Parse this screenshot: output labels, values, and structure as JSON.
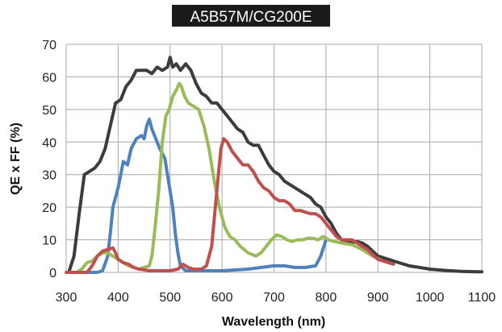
{
  "chart_data": {
    "type": "line",
    "title": "A5B57M/CG200E",
    "xlabel": "Wavelength (nm)",
    "ylabel": "QE x FF (%)",
    "xlim": [
      300,
      1100
    ],
    "ylim": [
      0,
      70
    ],
    "x_ticks": [
      300,
      400,
      500,
      600,
      700,
      800,
      900,
      1000,
      1100
    ],
    "y_ticks": [
      0,
      10,
      20,
      30,
      40,
      50,
      60,
      70
    ],
    "grid": true,
    "legend": "none",
    "series": [
      {
        "color": "#3c3c3c",
        "points": [
          [
            305,
            0
          ],
          [
            315,
            5
          ],
          [
            325,
            18
          ],
          [
            335,
            30
          ],
          [
            345,
            31
          ],
          [
            355,
            32
          ],
          [
            365,
            34
          ],
          [
            375,
            38
          ],
          [
            385,
            45
          ],
          [
            395,
            52
          ],
          [
            405,
            53
          ],
          [
            415,
            57
          ],
          [
            425,
            59
          ],
          [
            435,
            62
          ],
          [
            445,
            62
          ],
          [
            455,
            62
          ],
          [
            465,
            61
          ],
          [
            475,
            63
          ],
          [
            485,
            62
          ],
          [
            495,
            63
          ],
          [
            500,
            66
          ],
          [
            505,
            63
          ],
          [
            512,
            64
          ],
          [
            520,
            62
          ],
          [
            530,
            64
          ],
          [
            540,
            62
          ],
          [
            550,
            58
          ],
          [
            560,
            55
          ],
          [
            570,
            54
          ],
          [
            580,
            52
          ],
          [
            590,
            52
          ],
          [
            600,
            50
          ],
          [
            610,
            48
          ],
          [
            620,
            46
          ],
          [
            630,
            44
          ],
          [
            640,
            43
          ],
          [
            650,
            40
          ],
          [
            660,
            39
          ],
          [
            670,
            39
          ],
          [
            680,
            36
          ],
          [
            690,
            33
          ],
          [
            700,
            31
          ],
          [
            710,
            30
          ],
          [
            720,
            28
          ],
          [
            730,
            27
          ],
          [
            740,
            26
          ],
          [
            750,
            25
          ],
          [
            760,
            24
          ],
          [
            770,
            23
          ],
          [
            780,
            21
          ],
          [
            790,
            20
          ],
          [
            800,
            17
          ],
          [
            810,
            15
          ],
          [
            820,
            12
          ],
          [
            830,
            10
          ],
          [
            840,
            9.5
          ],
          [
            850,
            9
          ],
          [
            860,
            9.5
          ],
          [
            870,
            9
          ],
          [
            880,
            8
          ],
          [
            890,
            6.5
          ],
          [
            900,
            5
          ],
          [
            920,
            4
          ],
          [
            940,
            3
          ],
          [
            960,
            2
          ],
          [
            980,
            1.5
          ],
          [
            1000,
            1
          ],
          [
            1030,
            0.6
          ],
          [
            1060,
            0.3
          ],
          [
            1090,
            0.2
          ],
          [
            1100,
            0.2
          ]
        ]
      },
      {
        "color": "#4f81bd",
        "points": [
          [
            340,
            0
          ],
          [
            350,
            0
          ],
          [
            360,
            0
          ],
          [
            370,
            0.5
          ],
          [
            380,
            5
          ],
          [
            385,
            12
          ],
          [
            390,
            20
          ],
          [
            400,
            26
          ],
          [
            405,
            30
          ],
          [
            410,
            34
          ],
          [
            418,
            33
          ],
          [
            425,
            38
          ],
          [
            435,
            41
          ],
          [
            445,
            42
          ],
          [
            450,
            41
          ],
          [
            455,
            45
          ],
          [
            460,
            47
          ],
          [
            465,
            44
          ],
          [
            470,
            42
          ],
          [
            475,
            40
          ],
          [
            480,
            38
          ],
          [
            490,
            35
          ],
          [
            495,
            30
          ],
          [
            505,
            20
          ],
          [
            510,
            12
          ],
          [
            515,
            6
          ],
          [
            520,
            2
          ],
          [
            530,
            0.5
          ],
          [
            560,
            0.5
          ],
          [
            600,
            0.5
          ],
          [
            650,
            1
          ],
          [
            700,
            2
          ],
          [
            720,
            2
          ],
          [
            740,
            1.5
          ],
          [
            760,
            1.5
          ],
          [
            780,
            2
          ],
          [
            790,
            5
          ],
          [
            800,
            10
          ]
        ]
      },
      {
        "color": "#9bbb59",
        "points": [
          [
            320,
            0
          ],
          [
            330,
            1
          ],
          [
            340,
            3
          ],
          [
            350,
            3.5
          ],
          [
            360,
            5
          ],
          [
            370,
            6
          ],
          [
            380,
            6
          ],
          [
            390,
            5
          ],
          [
            400,
            4
          ],
          [
            410,
            3
          ],
          [
            420,
            2
          ],
          [
            430,
            1.5
          ],
          [
            440,
            1
          ],
          [
            450,
            1.5
          ],
          [
            460,
            2
          ],
          [
            465,
            5
          ],
          [
            470,
            12
          ],
          [
            478,
            25
          ],
          [
            485,
            40
          ],
          [
            492,
            48
          ],
          [
            498,
            50
          ],
          [
            505,
            54
          ],
          [
            512,
            56
          ],
          [
            518,
            58
          ],
          [
            522,
            57
          ],
          [
            528,
            54
          ],
          [
            535,
            52
          ],
          [
            545,
            51
          ],
          [
            555,
            50
          ],
          [
            565,
            45
          ],
          [
            575,
            38
          ],
          [
            585,
            28
          ],
          [
            595,
            20
          ],
          [
            605,
            14
          ],
          [
            615,
            11
          ],
          [
            625,
            10
          ],
          [
            635,
            8
          ],
          [
            650,
            6
          ],
          [
            665,
            5
          ],
          [
            675,
            6
          ],
          [
            685,
            8
          ],
          [
            695,
            10
          ],
          [
            705,
            11.5
          ],
          [
            715,
            11
          ],
          [
            725,
            10
          ],
          [
            735,
            9.5
          ],
          [
            745,
            10
          ],
          [
            755,
            10
          ],
          [
            765,
            10.5
          ],
          [
            775,
            10.5
          ],
          [
            785,
            10
          ],
          [
            795,
            11
          ],
          [
            805,
            10
          ],
          [
            815,
            9.5
          ],
          [
            830,
            9
          ],
          [
            850,
            8.5
          ],
          [
            870,
            7
          ],
          [
            890,
            5
          ],
          [
            910,
            3.5
          ],
          [
            930,
            2.5
          ]
        ]
      },
      {
        "color": "#c0504d",
        "points": [
          [
            300,
            0
          ],
          [
            340,
            0
          ],
          [
            350,
            2
          ],
          [
            360,
            5
          ],
          [
            370,
            6.5
          ],
          [
            380,
            7
          ],
          [
            390,
            7.5
          ],
          [
            395,
            6
          ],
          [
            400,
            4
          ],
          [
            410,
            3
          ],
          [
            420,
            2.5
          ],
          [
            430,
            1.5
          ],
          [
            440,
            1
          ],
          [
            450,
            0.8
          ],
          [
            460,
            0.5
          ],
          [
            480,
            0.5
          ],
          [
            500,
            0.5
          ],
          [
            515,
            1
          ],
          [
            525,
            2.5
          ],
          [
            535,
            1.5
          ],
          [
            545,
            1
          ],
          [
            560,
            1
          ],
          [
            570,
            2
          ],
          [
            580,
            8
          ],
          [
            587,
            20
          ],
          [
            593,
            30
          ],
          [
            598,
            38
          ],
          [
            603,
            41
          ],
          [
            610,
            40
          ],
          [
            620,
            37
          ],
          [
            630,
            35
          ],
          [
            640,
            33
          ],
          [
            650,
            33
          ],
          [
            660,
            31
          ],
          [
            670,
            28
          ],
          [
            680,
            26
          ],
          [
            690,
            25
          ],
          [
            700,
            23
          ],
          [
            710,
            22
          ],
          [
            720,
            22
          ],
          [
            730,
            21
          ],
          [
            740,
            19
          ],
          [
            750,
            19
          ],
          [
            760,
            18.5
          ],
          [
            770,
            18
          ],
          [
            780,
            18
          ],
          [
            790,
            17
          ],
          [
            800,
            15
          ],
          [
            810,
            13
          ],
          [
            820,
            11
          ],
          [
            830,
            10
          ],
          [
            840,
            10
          ],
          [
            850,
            10
          ],
          [
            860,
            9
          ],
          [
            870,
            8
          ],
          [
            880,
            7
          ],
          [
            890,
            5.5
          ],
          [
            900,
            4
          ],
          [
            920,
            3
          ],
          [
            930,
            2.5
          ]
        ]
      }
    ]
  }
}
